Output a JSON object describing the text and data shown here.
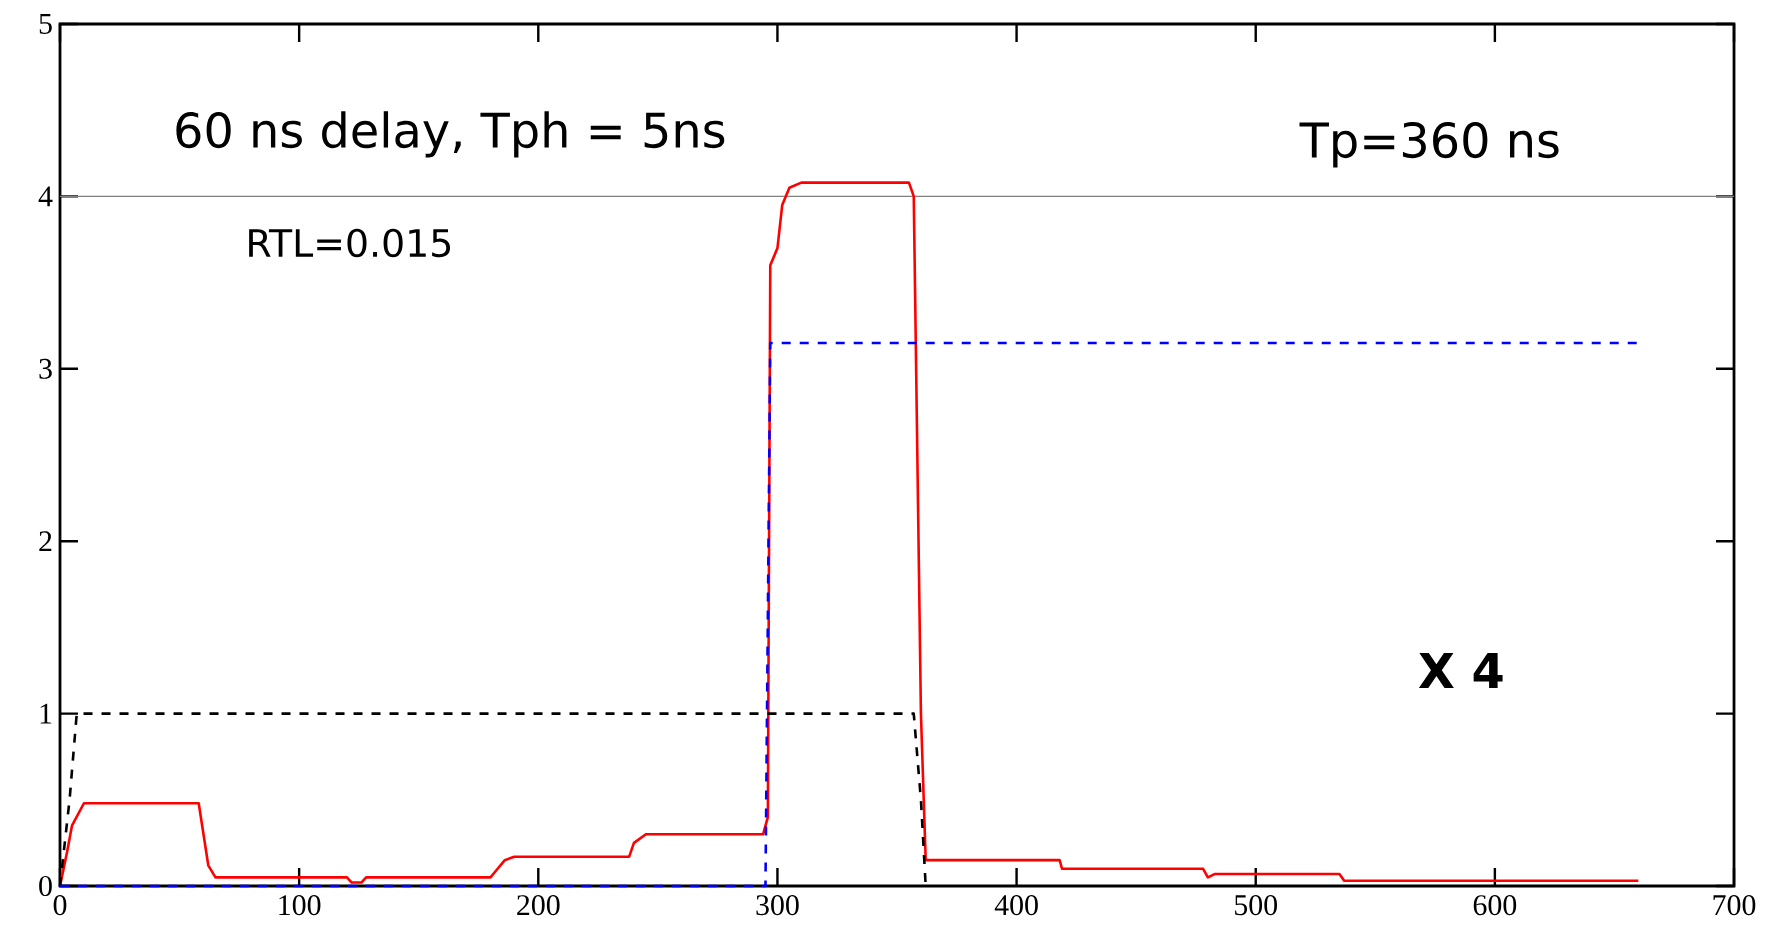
{
  "chart_data": {
    "type": "line",
    "xlim": [
      0,
      700
    ],
    "ylim": [
      0,
      5
    ],
    "xticks": [
      0,
      100,
      200,
      300,
      400,
      500,
      600,
      700
    ],
    "yticks": [
      0,
      1,
      2,
      3,
      4,
      5
    ],
    "grid": false,
    "marker": "none",
    "annotations": [
      "60 ns delay, Tph = 5ns",
      "RTL=0.015",
      "Tp=360 ns",
      "**X 4**"
    ],
    "ref_lines": [
      {
        "axis": "y",
        "value": 4,
        "color": "#808080",
        "line_style": "solid"
      }
    ],
    "series": [
      {
        "color": "#ff0000",
        "line_style": "solid",
        "x": [
          0,
          3,
          5,
          10,
          58,
          60,
          62,
          65,
          120,
          122,
          126,
          128,
          180,
          183,
          186,
          190,
          238,
          240,
          245,
          294,
          296,
          297,
          300,
          302,
          305,
          310,
          355,
          357,
          360,
          362,
          418,
          419,
          478,
          480,
          483,
          535,
          537,
          660
        ],
        "values": [
          0,
          0.2,
          0.35,
          0.48,
          0.48,
          0.3,
          0.12,
          0.05,
          0.05,
          0.02,
          0.02,
          0.05,
          0.05,
          0.1,
          0.15,
          0.17,
          0.17,
          0.25,
          0.3,
          0.3,
          0.4,
          3.6,
          3.7,
          3.95,
          4.05,
          4.08,
          4.08,
          4.0,
          1.0,
          0.15,
          0.15,
          0.1,
          0.1,
          0.05,
          0.07,
          0.07,
          0.03,
          0.03
        ]
      },
      {
        "color": "#000000",
        "line_style": "dashed",
        "x": [
          0,
          4,
          7,
          357,
          360,
          362
        ],
        "values": [
          0,
          0.5,
          1,
          1,
          0.5,
          0
        ]
      },
      {
        "color": "#0000ff",
        "line_style": "dashed",
        "x": [
          0,
          295,
          297,
          660
        ],
        "values": [
          0,
          0,
          3.15,
          3.15
        ]
      }
    ]
  }
}
